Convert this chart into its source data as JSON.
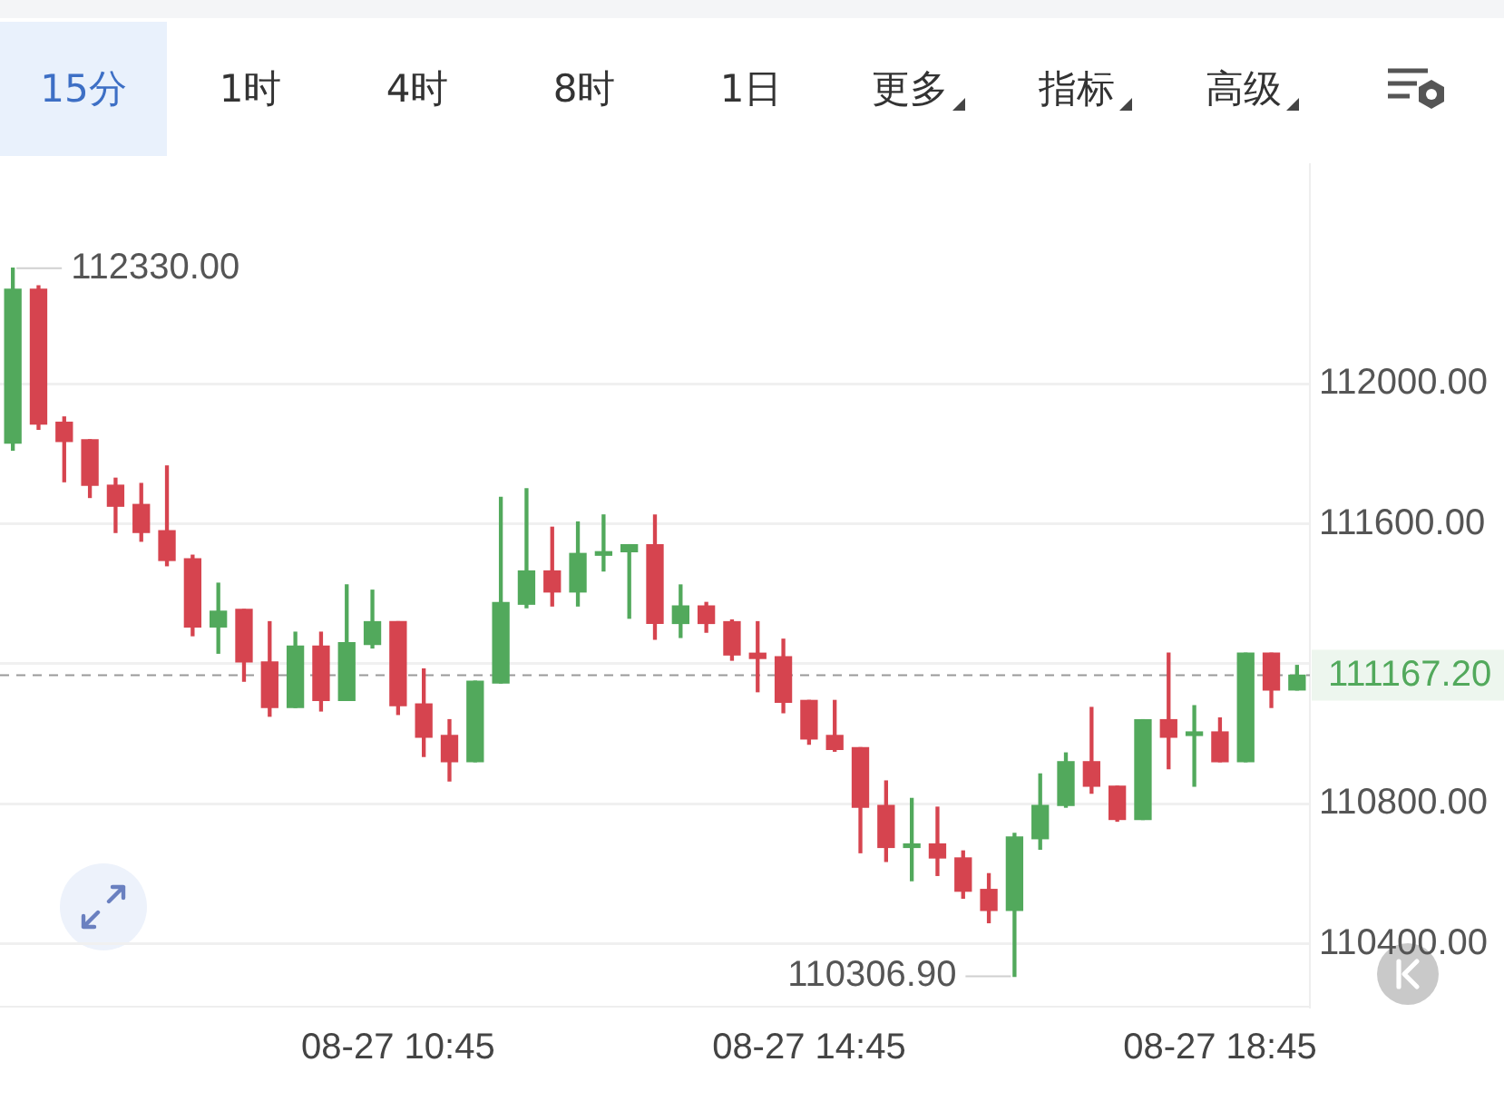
{
  "chart_data": {
    "type": "candlestick",
    "categories": [
      null,
      null,
      null,
      null,
      null,
      null,
      null,
      null,
      null,
      null,
      null,
      null,
      null,
      null,
      null,
      "08-27 10:45",
      null,
      null,
      null,
      null,
      null,
      null,
      null,
      null,
      null,
      null,
      null,
      null,
      null,
      null,
      null,
      "08-27 14:45",
      null,
      null,
      null,
      null,
      null,
      null,
      null,
      null,
      null,
      null,
      null,
      null,
      null,
      null,
      null,
      "08-27 18:45",
      null,
      null,
      null
    ],
    "ohlc": [
      [
        111830,
        112330,
        111810,
        112270
      ],
      [
        112270,
        112280,
        111870,
        111885
      ],
      [
        111890,
        111905,
        111720,
        111835
      ],
      [
        111840,
        111840,
        111675,
        111710
      ],
      [
        111710,
        111730,
        111575,
        111650
      ],
      [
        111655,
        111715,
        111550,
        111575
      ],
      [
        111580,
        111765,
        111480,
        111495
      ],
      [
        111500,
        111510,
        111280,
        111305
      ],
      [
        111305,
        111430,
        111230,
        111350
      ],
      [
        111355,
        111355,
        111150,
        111205
      ],
      [
        111205,
        111320,
        111050,
        111075
      ],
      [
        111075,
        111290,
        111075,
        111250
      ],
      [
        111250,
        111290,
        111065,
        111095
      ],
      [
        111095,
        111425,
        111095,
        111260
      ],
      [
        111255,
        111410,
        111245,
        111320
      ],
      [
        111320,
        111320,
        111055,
        111080
      ],
      [
        111085,
        111185,
        110935,
        110990
      ],
      [
        110995,
        111040,
        110865,
        110920
      ],
      [
        110920,
        111150,
        110920,
        111150
      ],
      [
        111145,
        111675,
        111145,
        111375
      ],
      [
        111370,
        111700,
        111360,
        111465
      ],
      [
        111465,
        111590,
        111365,
        111405
      ],
      [
        111405,
        111605,
        111365,
        111515
      ],
      [
        111510,
        111625,
        111465,
        111520
      ],
      [
        111520,
        111540,
        111330,
        111540
      ],
      [
        111540,
        111625,
        111270,
        111315
      ],
      [
        111315,
        111425,
        111275,
        111365
      ],
      [
        111365,
        111375,
        111290,
        111315
      ],
      [
        111320,
        111325,
        111210,
        111225
      ],
      [
        111230,
        111320,
        111120,
        111215
      ],
      [
        111220,
        111270,
        111060,
        111090
      ],
      [
        111095,
        111095,
        110970,
        110985
      ],
      [
        110995,
        111095,
        110950,
        110955
      ],
      [
        110960,
        110960,
        110660,
        110790
      ],
      [
        110795,
        110865,
        110635,
        110675
      ],
      [
        110675,
        110815,
        110580,
        110685
      ],
      [
        110685,
        110790,
        110595,
        110645
      ],
      [
        110645,
        110665,
        110530,
        110550
      ],
      [
        110555,
        110600,
        110460,
        110495
      ],
      [
        110495,
        110715,
        110306.9,
        110705
      ],
      [
        110700,
        110885,
        110670,
        110795
      ],
      [
        110795,
        110945,
        110790,
        110920
      ],
      [
        110920,
        111075,
        110830,
        110850
      ],
      [
        110850,
        110850,
        110750,
        110755
      ],
      [
        110755,
        111040,
        110755,
        111040
      ],
      [
        111040,
        111230,
        110900,
        110990
      ],
      [
        110995,
        111080,
        110850,
        111005
      ],
      [
        111005,
        111045,
        110920,
        110920
      ],
      [
        110920,
        111230,
        110920,
        111230
      ],
      [
        111230,
        111230,
        111075,
        111125
      ],
      [
        111125,
        111195,
        111125,
        111167.2
      ]
    ],
    "colors": [
      "#52a95c",
      "#d6444f",
      "#d6444f",
      "#d6444f",
      "#d6444f",
      "#d6444f",
      "#d6444f",
      "#d6444f",
      "#52a95c",
      "#d6444f",
      "#d6444f",
      "#52a95c",
      "#d6444f",
      "#52a95c",
      "#52a95c",
      "#d6444f",
      "#d6444f",
      "#d6444f",
      "#52a95c",
      "#52a95c",
      "#52a95c",
      "#d6444f",
      "#52a95c",
      "#52a95c",
      "#52a95c",
      "#d6444f",
      "#52a95c",
      "#d6444f",
      "#d6444f",
      "#d6444f",
      "#d6444f",
      "#d6444f",
      "#d6444f",
      "#d6444f",
      "#d6444f",
      "#52a95c",
      "#d6444f",
      "#d6444f",
      "#d6444f",
      "#52a95c",
      "#52a95c",
      "#52a95c",
      "#d6444f",
      "#d6444f",
      "#52a95c",
      "#d6444f",
      "#52a95c",
      "#d6444f",
      "#52a95c",
      "#d6444f",
      "#52a95c"
    ],
    "ylim": [
      110220,
      112630
    ],
    "yticks": [
      {
        "value": 110400,
        "label": "110400.00"
      },
      {
        "value": 110800,
        "label": "110800.00"
      },
      {
        "value": 111200,
        "label": null
      },
      {
        "value": 111600,
        "label": "111600.00"
      },
      {
        "value": 112000,
        "label": "112000.00"
      }
    ],
    "grid": "y",
    "ref_lines": [
      {
        "axis": "y",
        "value": 111167.2,
        "label": "111167.20",
        "color": "#9a9a9a",
        "line_style": "dashed"
      }
    ],
    "annotations": [
      "15分",
      "1时",
      "4时",
      "8时",
      "1日",
      "更多",
      "指标",
      "高级",
      "112330.00",
      "110306.90"
    ]
  }
}
